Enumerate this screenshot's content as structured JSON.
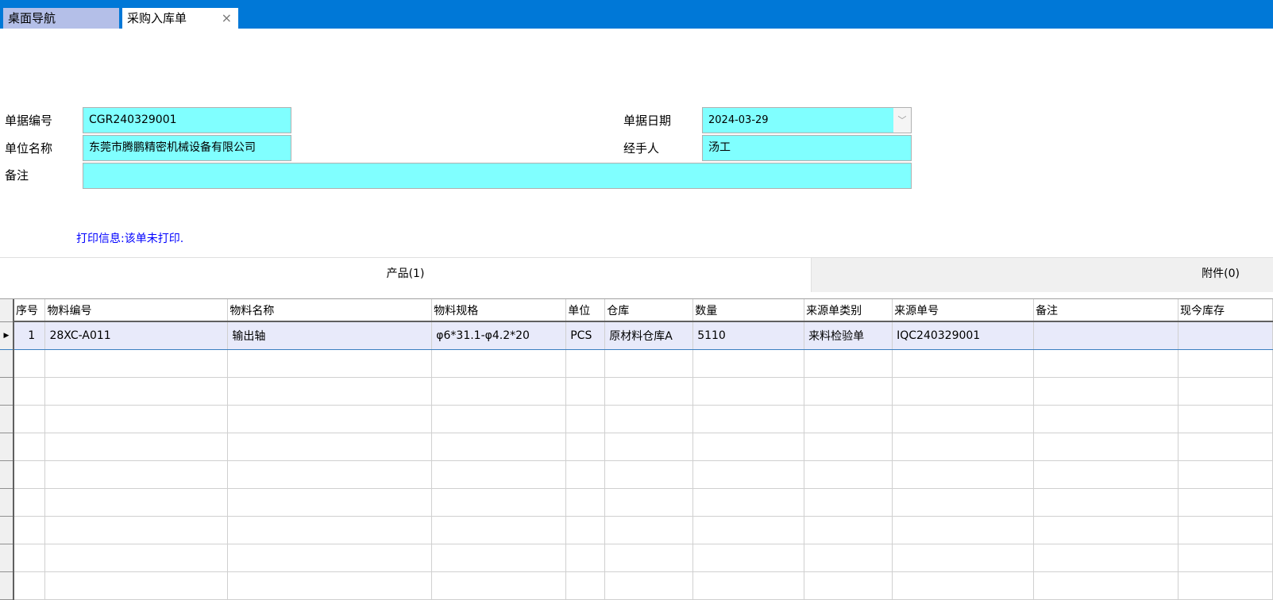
{
  "tabs": [
    {
      "label": "桌面导航"
    },
    {
      "label": "采购入库单",
      "close": "×"
    }
  ],
  "form": {
    "doc_no_label": "单据编号",
    "doc_no": "CGR240329001",
    "company_label": "单位名称",
    "company": "东莞市腾鹏精密机械设备有限公司",
    "remark_label": "备注",
    "remark": "",
    "date_label": "单据日期",
    "date": "2024-03-29",
    "date_arrow": "﹀",
    "handler_label": "经手人",
    "handler": "汤工"
  },
  "print_info": "打印信息:该单未打印.",
  "detail_tabs": {
    "products": "产品(1)",
    "attachments": "附件(0)"
  },
  "grid": {
    "columns": [
      "序号",
      "物料编号",
      "物料名称",
      "物料规格",
      "单位",
      "仓库",
      "数量",
      "来源单类别",
      "来源单号",
      "备注",
      "现今库存"
    ],
    "rows": [
      [
        "1",
        "28XC-A011",
        "输出轴",
        "φ6*31.1-φ4.2*20",
        "PCS",
        "原材料仓库A",
        "5110",
        "来料检验单",
        "IQC240329001",
        "",
        ""
      ]
    ],
    "row_indicator": "▶"
  },
  "colors": {
    "titlebar": "#0078d7",
    "field": "#80ffff",
    "print_info": "#0000ff"
  }
}
